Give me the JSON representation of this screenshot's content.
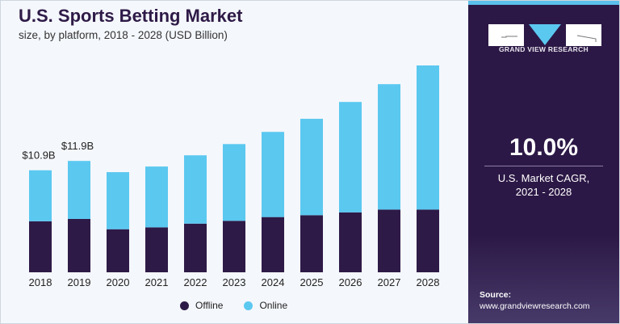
{
  "chart_data": {
    "type": "bar",
    "stacked": true,
    "title": "U.S. Sports Betting Market",
    "subtitle": "size, by platform, 2018 - 2028 (USD Billion)",
    "categories": [
      "2018",
      "2019",
      "2020",
      "2021",
      "2022",
      "2023",
      "2024",
      "2025",
      "2026",
      "2027",
      "2028"
    ],
    "series": [
      {
        "name": "Offline",
        "color": "#2e1a47",
        "values": [
          5.45,
          5.7,
          4.6,
          4.8,
          5.2,
          5.5,
          5.9,
          6.1,
          6.4,
          6.7,
          6.7
        ]
      },
      {
        "name": "Online",
        "color": "#5bc8f0",
        "values": [
          5.45,
          6.2,
          6.1,
          6.5,
          7.3,
          8.2,
          9.1,
          10.3,
          11.8,
          13.4,
          15.4
        ]
      }
    ],
    "data_labels": [
      {
        "category": "2018",
        "text": "$10.9B"
      },
      {
        "category": "2019",
        "text": "$11.9B"
      }
    ],
    "xlabel": "",
    "ylabel": "",
    "ylim": [
      0,
      23
    ],
    "grid": false,
    "legend_position": "bottom"
  },
  "sidebar": {
    "brand": "GRAND VIEW RESEARCH",
    "cagr_value": "10.0%",
    "cagr_label_line1": "U.S. Market CAGR,",
    "cagr_label_line2": "2021 - 2028",
    "source_label": "Source:",
    "source_url": "www.grandviewresearch.com"
  }
}
